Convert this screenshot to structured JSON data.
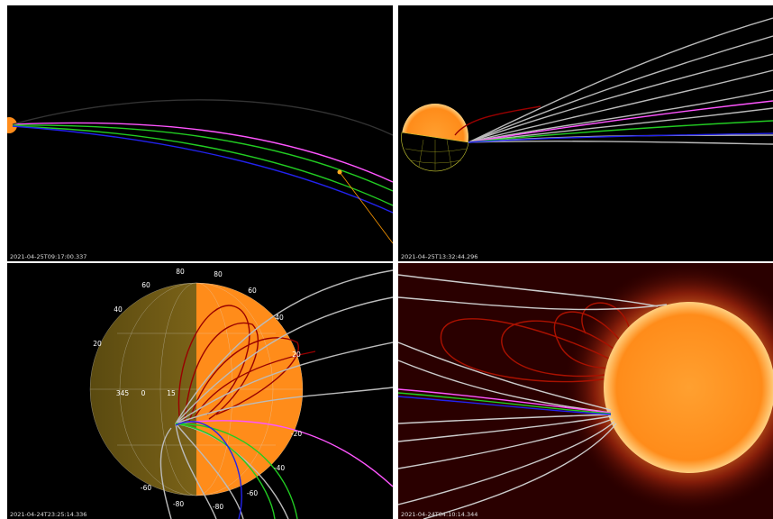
{
  "panels": [
    {
      "timestamp": "2021-04-25T09:17:00.337"
    },
    {
      "timestamp": "2021-04-25T13:32:44.296"
    },
    {
      "timestamp": "2021-04-24T23:25:14.336",
      "grid_labels": [
        "80",
        "60",
        "40",
        "20",
        "345",
        "0",
        "15",
        "-60",
        "-80",
        "80",
        "60",
        "40",
        "20",
        "-20",
        "-40",
        "-60",
        "-80"
      ]
    },
    {
      "timestamp": "2021-04-24T04:10:14.344"
    }
  ]
}
